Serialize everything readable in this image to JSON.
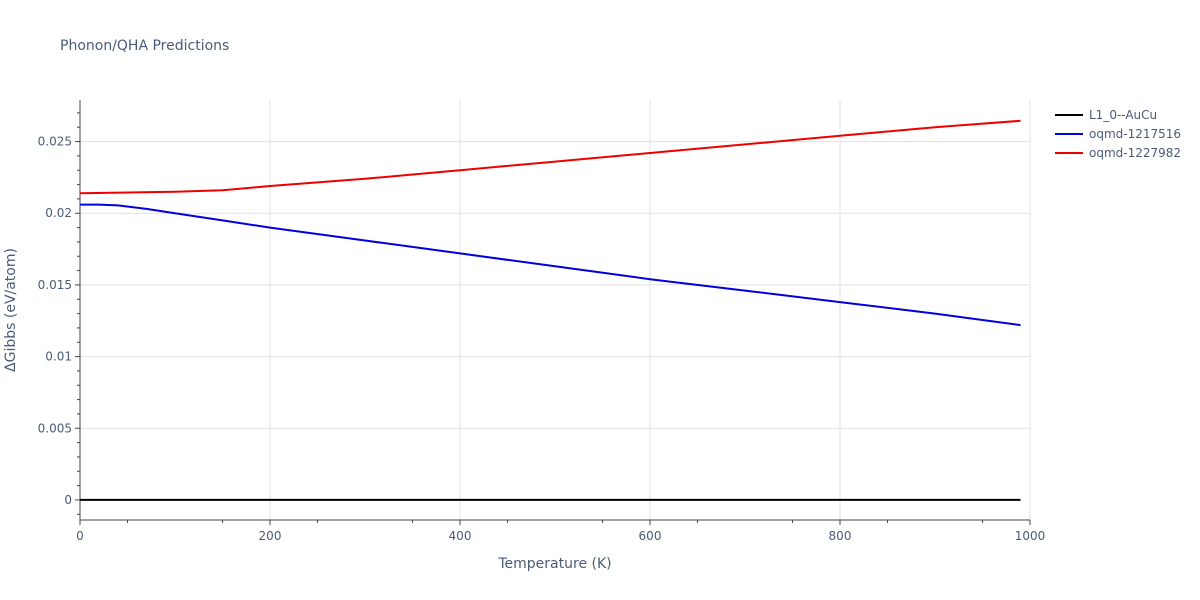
{
  "chart_data": {
    "type": "line",
    "title": "Phonon/QHA Predictions",
    "xlabel": "Temperature (K)",
    "ylabel": "ΔGibbs (eV/atom)",
    "xlim": [
      0,
      1000
    ],
    "ylim": [
      -0.0014,
      0.0279
    ],
    "x_ticks": [
      0,
      200,
      400,
      600,
      800,
      1000
    ],
    "y_ticks": [
      0,
      0.005,
      0.01,
      0.015,
      0.02,
      0.025
    ],
    "x_tick_labels": [
      "0",
      "200",
      "400",
      "600",
      "800",
      "1000"
    ],
    "y_tick_labels": [
      "0",
      "0.005",
      "0.01",
      "0.015",
      "0.02",
      "0.025"
    ],
    "grid": true,
    "legend_position": "top-right",
    "series": [
      {
        "name": "L1_0--AuCu",
        "color": "#000000",
        "x": [
          0,
          990
        ],
        "y": [
          0,
          0
        ]
      },
      {
        "name": "oqmd-1217516",
        "color": "#0000dd",
        "x": [
          0,
          20,
          40,
          70,
          100,
          150,
          200,
          300,
          400,
          500,
          600,
          700,
          800,
          900,
          990
        ],
        "y": [
          0.0206,
          0.0206,
          0.02055,
          0.0203,
          0.02,
          0.0195,
          0.019,
          0.0181,
          0.0172,
          0.0163,
          0.0154,
          0.0146,
          0.0138,
          0.013,
          0.0122
        ]
      },
      {
        "name": "oqmd-1227982",
        "color": "#ee0000",
        "x": [
          0,
          50,
          100,
          150,
          200,
          300,
          400,
          500,
          600,
          700,
          800,
          900,
          990
        ],
        "y": [
          0.0214,
          0.02145,
          0.0215,
          0.0216,
          0.0219,
          0.0224,
          0.023,
          0.0236,
          0.0242,
          0.0248,
          0.0254,
          0.026,
          0.02645
        ]
      }
    ]
  }
}
